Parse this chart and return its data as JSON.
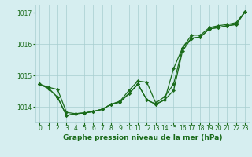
{
  "title": "Graphe pression niveau de la mer (hPa)",
  "background_color": "#d6eef0",
  "grid_color": "#a8cdd0",
  "line_color": "#1a6b1a",
  "xlim": [
    -0.5,
    23.5
  ],
  "ylim": [
    1013.5,
    1017.25
  ],
  "yticks": [
    1014,
    1015,
    1016,
    1017
  ],
  "xticks": [
    0,
    1,
    2,
    3,
    4,
    5,
    6,
    7,
    8,
    9,
    10,
    11,
    12,
    13,
    14,
    15,
    16,
    17,
    18,
    19,
    20,
    21,
    22,
    23
  ],
  "series1": [
    1014.72,
    1014.62,
    1014.55,
    1013.82,
    1013.78,
    1013.8,
    1013.85,
    1013.92,
    1014.08,
    1014.18,
    1014.52,
    1014.82,
    1014.78,
    1014.12,
    1014.32,
    1014.72,
    1015.88,
    1016.28,
    1016.28,
    1016.52,
    1016.58,
    1016.62,
    1016.68,
    1017.02
  ],
  "series2": [
    1014.72,
    1014.58,
    1014.3,
    1013.72,
    1013.78,
    1013.8,
    1013.85,
    1013.92,
    1014.08,
    1014.15,
    1014.42,
    1014.72,
    1014.22,
    1014.08,
    1014.22,
    1014.52,
    1015.78,
    1016.18,
    1016.22,
    1016.48,
    1016.52,
    1016.58,
    1016.62,
    1017.02
  ],
  "series3": [
    1014.72,
    1014.58,
    1014.3,
    1013.72,
    1013.78,
    1013.8,
    1013.85,
    1013.92,
    1014.08,
    1014.15,
    1014.42,
    1014.72,
    1014.22,
    1014.08,
    1014.22,
    1015.22,
    1015.88,
    1016.18,
    1016.22,
    1016.48,
    1016.52,
    1016.58,
    1016.62,
    1017.02
  ],
  "title_fontsize": 6.5,
  "tick_fontsize": 5.5,
  "ylabel_fontsize": 6.5
}
